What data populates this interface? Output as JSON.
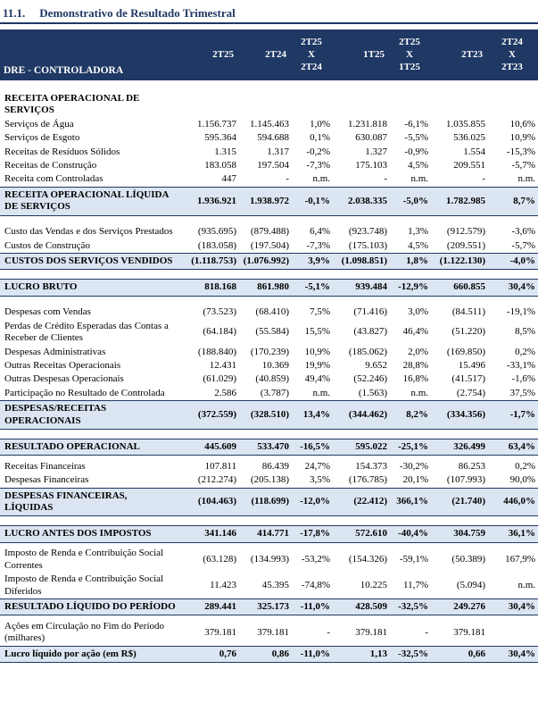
{
  "title": {
    "number": "11.1.",
    "text": "Demonstrativo de Resultado Trimestral"
  },
  "colors": {
    "navy": "#1F3864",
    "highlight": "#DCE6F2"
  },
  "table": {
    "header_label": "DRE - CONTROLADORA",
    "columns": [
      "2T25",
      "2T24",
      "2T25\nX\n2T24",
      "1T25",
      "2T25\nX\n1T25",
      "2T23",
      "2T24\nX\n2T23"
    ],
    "rows": [
      {
        "type": "spacer"
      },
      {
        "type": "section",
        "label": "RECEITA OPERACIONAL DE SERVIÇOS"
      },
      {
        "type": "normal",
        "label": "Serviços de Água",
        "values": [
          "1.156.737",
          "1.145.463",
          "1,0%",
          "1.231.818",
          "-6,1%",
          "1.035.855",
          "10,6%"
        ]
      },
      {
        "type": "normal",
        "label": "Serviços de Esgoto",
        "values": [
          "595.364",
          "594.688",
          "0,1%",
          "630.087",
          "-5,5%",
          "536.025",
          "10,9%"
        ]
      },
      {
        "type": "normal",
        "label": "Receitas de Resíduos Sólidos",
        "values": [
          "1.315",
          "1.317",
          "-0,2%",
          "1.327",
          "-0,9%",
          "1.554",
          "-15,3%"
        ]
      },
      {
        "type": "normal",
        "label": "Receitas de Construção",
        "values": [
          "183.058",
          "197.504",
          "-7,3%",
          "175.103",
          "4,5%",
          "209.551",
          "-5,7%"
        ]
      },
      {
        "type": "normal",
        "label": "Receita com Controladas",
        "values": [
          "447",
          "-",
          "n.m.",
          "-",
          "n.m.",
          "-",
          "n.m."
        ]
      },
      {
        "type": "total",
        "label": "RECEITA OPERACIONAL LÍQUIDA DE SERVIÇOS",
        "values": [
          "1.936.921",
          "1.938.972",
          "-0,1%",
          "2.038.335",
          "-5,0%",
          "1.782.985",
          "8,7%"
        ]
      },
      {
        "type": "spacer"
      },
      {
        "type": "normal",
        "label": "Custo das Vendas e dos Serviços Prestados",
        "values": [
          "(935.695)",
          "(879.488)",
          "6,4%",
          "(923.748)",
          "1,3%",
          "(912.579)",
          "-3,6%"
        ]
      },
      {
        "type": "normal",
        "label": "Custos de Construção",
        "values": [
          "(183.058)",
          "(197.504)",
          "-7,3%",
          "(175.103)",
          "4,5%",
          "(209.551)",
          "-5,7%"
        ]
      },
      {
        "type": "total",
        "label": "CUSTOS DOS SERVIÇOS VENDIDOS",
        "values": [
          "(1.118.753)",
          "(1.076.992)",
          "3,9%",
          "(1.098.851)",
          "1,8%",
          "(1.122.130)",
          "-4,0%"
        ]
      },
      {
        "type": "spacer"
      },
      {
        "type": "total",
        "label": "LUCRO BRUTO",
        "values": [
          "818.168",
          "861.980",
          "-5,1%",
          "939.484",
          "-12,9%",
          "660.855",
          "30,4%"
        ]
      },
      {
        "type": "spacer"
      },
      {
        "type": "normal",
        "label": "Despesas com Vendas",
        "values": [
          "(73.523)",
          "(68.410)",
          "7,5%",
          "(71.416)",
          "3,0%",
          "(84.511)",
          "-19,1%"
        ]
      },
      {
        "type": "normal",
        "label": "Perdas de Crédito Esperadas das Contas a Receber de Clientes",
        "values": [
          "(64.184)",
          "(55.584)",
          "15,5%",
          "(43.827)",
          "46,4%",
          "(51.220)",
          "8,5%"
        ]
      },
      {
        "type": "normal",
        "label": "Despesas Administrativas",
        "values": [
          "(188.840)",
          "(170.239)",
          "10,9%",
          "(185.062)",
          "2,0%",
          "(169.850)",
          "0,2%"
        ]
      },
      {
        "type": "normal",
        "label": "Outras Receitas Operacionais",
        "values": [
          "12.431",
          "10.369",
          "19,9%",
          "9.652",
          "28,8%",
          "15.496",
          "-33,1%"
        ]
      },
      {
        "type": "normal",
        "label": "Outras Despesas Operacionais",
        "values": [
          "(61.029)",
          "(40.859)",
          "49,4%",
          "(52.246)",
          "16,8%",
          "(41.517)",
          "-1,6%"
        ]
      },
      {
        "type": "normal",
        "label": "Participação no Resultado de Controlada",
        "values": [
          "2.586",
          "(3.787)",
          "n.m.",
          "(1.563)",
          "n.m.",
          "(2.754)",
          "37,5%"
        ]
      },
      {
        "type": "total",
        "label": "DESPESAS/RECEITAS OPERACIONAIS",
        "values": [
          "(372.559)",
          "(328.510)",
          "13,4%",
          "(344.462)",
          "8,2%",
          "(334.356)",
          "-1,7%"
        ]
      },
      {
        "type": "spacer"
      },
      {
        "type": "total",
        "label": "RESULTADO OPERACIONAL",
        "values": [
          "445.609",
          "533.470",
          "-16,5%",
          "595.022",
          "-25,1%",
          "326.499",
          "63,4%"
        ]
      },
      {
        "type": "spacer-sm"
      },
      {
        "type": "normal",
        "label": "Receitas Financeiras",
        "values": [
          "107.811",
          "86.439",
          "24,7%",
          "154.373",
          "-30,2%",
          "86.253",
          "0,2%"
        ]
      },
      {
        "type": "normal",
        "label": "Despesas Financeiras",
        "values": [
          "(212.274)",
          "(205.138)",
          "3,5%",
          "(176.785)",
          "20,1%",
          "(107.993)",
          "90,0%"
        ]
      },
      {
        "type": "total",
        "label": "DESPESAS FINANCEIRAS, LÍQUIDAS",
        "values": [
          "(104.463)",
          "(118.699)",
          "-12,0%",
          "(22.412)",
          "366,1%",
          "(21.740)",
          "446,0%"
        ]
      },
      {
        "type": "spacer"
      },
      {
        "type": "total",
        "label": "LUCRO ANTES DOS IMPOSTOS",
        "values": [
          "341.146",
          "414.771",
          "-17,8%",
          "572.610",
          "-40,4%",
          "304.759",
          "36,1%"
        ]
      },
      {
        "type": "spacer-sm"
      },
      {
        "type": "normal",
        "label": "Imposto de Renda e Contribuição Social Correntes",
        "values": [
          "(63.128)",
          "(134.993)",
          "-53,2%",
          "(154.326)",
          "-59,1%",
          "(50.389)",
          "167,9%"
        ]
      },
      {
        "type": "normal",
        "label": "Imposto de Renda e Contribuição Social Diferidos",
        "values": [
          "11.423",
          "45.395",
          "-74,8%",
          "10.225",
          "11,7%",
          "(5.094)",
          "n.m."
        ]
      },
      {
        "type": "total",
        "label": "RESULTADO LÍQUIDO DO PERÍODO",
        "values": [
          "289.441",
          "325.173",
          "-11,0%",
          "428.509",
          "-32,5%",
          "249.276",
          "30,4%"
        ]
      },
      {
        "type": "spacer-sm"
      },
      {
        "type": "normal",
        "label": "Ações em Circulação no Fim do Período (milhares)",
        "values": [
          "379.181",
          "379.181",
          "-",
          "379.181",
          "-",
          "379.181",
          ""
        ]
      },
      {
        "type": "total",
        "label": "Lucro líquido por ação (em R$)",
        "values": [
          "0,76",
          "0,86",
          "-11,0%",
          "1,13",
          "-32,5%",
          "0,66",
          "30,4%"
        ]
      }
    ]
  }
}
